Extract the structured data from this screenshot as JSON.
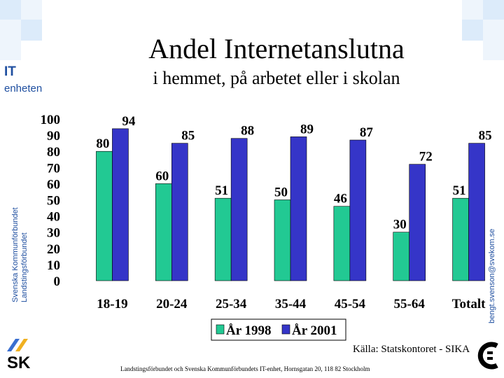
{
  "header": {
    "title": "Andel Internetanslutna",
    "subtitle": "i hemmet, på arbetet eller i skolan"
  },
  "branding": {
    "it_label": "IT",
    "it_sublabel": "enheten",
    "org_line1": "Svenska Kommunförbundet",
    "org_line2": "Landstingsförbundet",
    "email": "bengt.svenson@svekom.se",
    "logo_left": "sk-logo-icon",
    "logo_right": "svekom-logo-icon"
  },
  "source": "Källa: Statskontoret - SIKA",
  "footer": "Landstingsförbundet och Svenska Kommunförbundets IT-enhet, Hornsgatan 20, 118 82 Stockholm",
  "colors": {
    "series_1998": "#22c993",
    "series_2001": "#3535c8"
  },
  "chart_data": {
    "type": "bar",
    "categories": [
      "18-19",
      "20-24",
      "25-34",
      "35-44",
      "45-54",
      "55-64",
      "Totalt"
    ],
    "series": [
      {
        "name": "År 1998",
        "values": [
          80,
          60,
          51,
          50,
          46,
          30,
          51
        ]
      },
      {
        "name": "År 2001",
        "values": [
          94,
          85,
          88,
          89,
          87,
          72,
          85
        ]
      }
    ],
    "yticks": [
      "100",
      "90",
      "80",
      "70",
      "60",
      "50",
      "40",
      "30",
      "20",
      "10",
      "0"
    ],
    "ylim": [
      0,
      100
    ],
    "grid": false,
    "legend": "bottom",
    "data_labels": true
  }
}
